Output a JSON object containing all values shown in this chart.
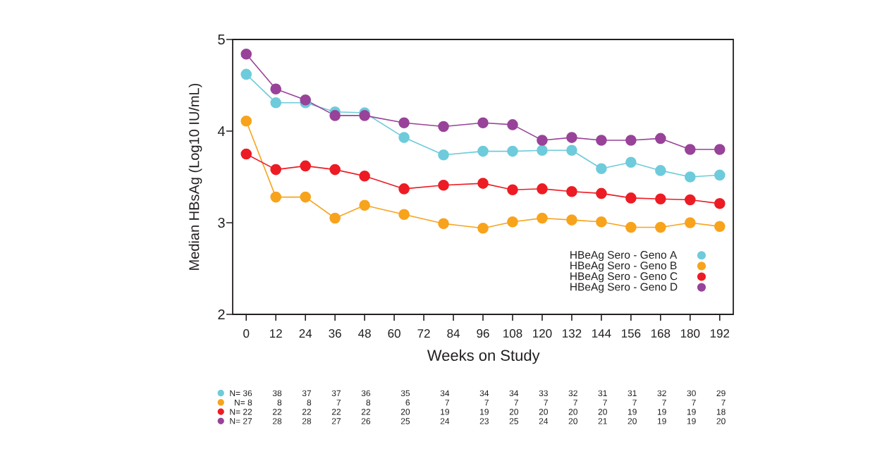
{
  "chart_data": {
    "type": "line",
    "xlabel": "Weeks on Study",
    "ylabel": "Median HBsAg (Log10 IU/mL)",
    "xlim": [
      -5.5,
      197.5
    ],
    "ylim": [
      2,
      5
    ],
    "xticks": [
      0,
      12,
      24,
      36,
      48,
      60,
      72,
      84,
      96,
      108,
      120,
      132,
      144,
      156,
      168,
      180,
      192
    ],
    "yticks": [
      2,
      3,
      4,
      5
    ],
    "x": [
      0,
      12,
      24,
      36,
      48,
      64,
      80,
      96,
      108,
      120,
      132,
      144,
      156,
      168,
      180,
      192
    ],
    "series": [
      {
        "name": "HBeAg Sero - Geno A",
        "color": "#6ecbdb",
        "values": [
          4.62,
          4.31,
          4.31,
          4.21,
          4.2,
          3.93,
          3.74,
          3.78,
          3.78,
          3.79,
          3.79,
          3.59,
          3.66,
          3.57,
          3.5,
          3.52
        ]
      },
      {
        "name": "HBeAg Sero - Geno B",
        "color": "#f8a31c",
        "values": [
          4.11,
          3.28,
          3.28,
          3.05,
          3.19,
          3.09,
          2.99,
          2.94,
          3.01,
          3.05,
          3.03,
          3.01,
          2.95,
          2.95,
          3.0,
          2.96
        ]
      },
      {
        "name": "HBeAg Sero - Geno C",
        "color": "#ed1c24",
        "values": [
          3.75,
          3.58,
          3.62,
          3.58,
          3.51,
          3.37,
          3.41,
          3.43,
          3.36,
          3.37,
          3.34,
          3.32,
          3.27,
          3.26,
          3.25,
          3.21
        ]
      },
      {
        "name": "HBeAg Sero - Geno D",
        "color": "#984399",
        "values": [
          4.84,
          4.46,
          4.34,
          4.17,
          4.17,
          4.09,
          4.05,
          4.09,
          4.07,
          3.9,
          3.93,
          3.9,
          3.9,
          3.92,
          3.8,
          3.8
        ]
      }
    ],
    "legend": "bottom right",
    "marker": "circle",
    "line_style": "solid",
    "annotations": [
      "N= 36",
      "38",
      "37",
      "37",
      "36",
      "35",
      "34",
      "34",
      "34",
      "33",
      "32",
      "31",
      "31",
      "32",
      "30",
      "29",
      "N= 8",
      "8",
      "8",
      "7",
      "8",
      "6",
      "7",
      "7",
      "7",
      "7",
      "7",
      "7",
      "7",
      "7",
      "7",
      "7",
      "N= 22",
      "22",
      "22",
      "22",
      "22",
      "20",
      "19",
      "19",
      "20",
      "20",
      "20",
      "20",
      "19",
      "19",
      "19",
      "18",
      "N= 27",
      "28",
      "28",
      "27",
      "26",
      "25",
      "24",
      "23",
      "25",
      "24",
      "20",
      "21",
      "20",
      "19",
      "19",
      "20"
    ]
  }
}
